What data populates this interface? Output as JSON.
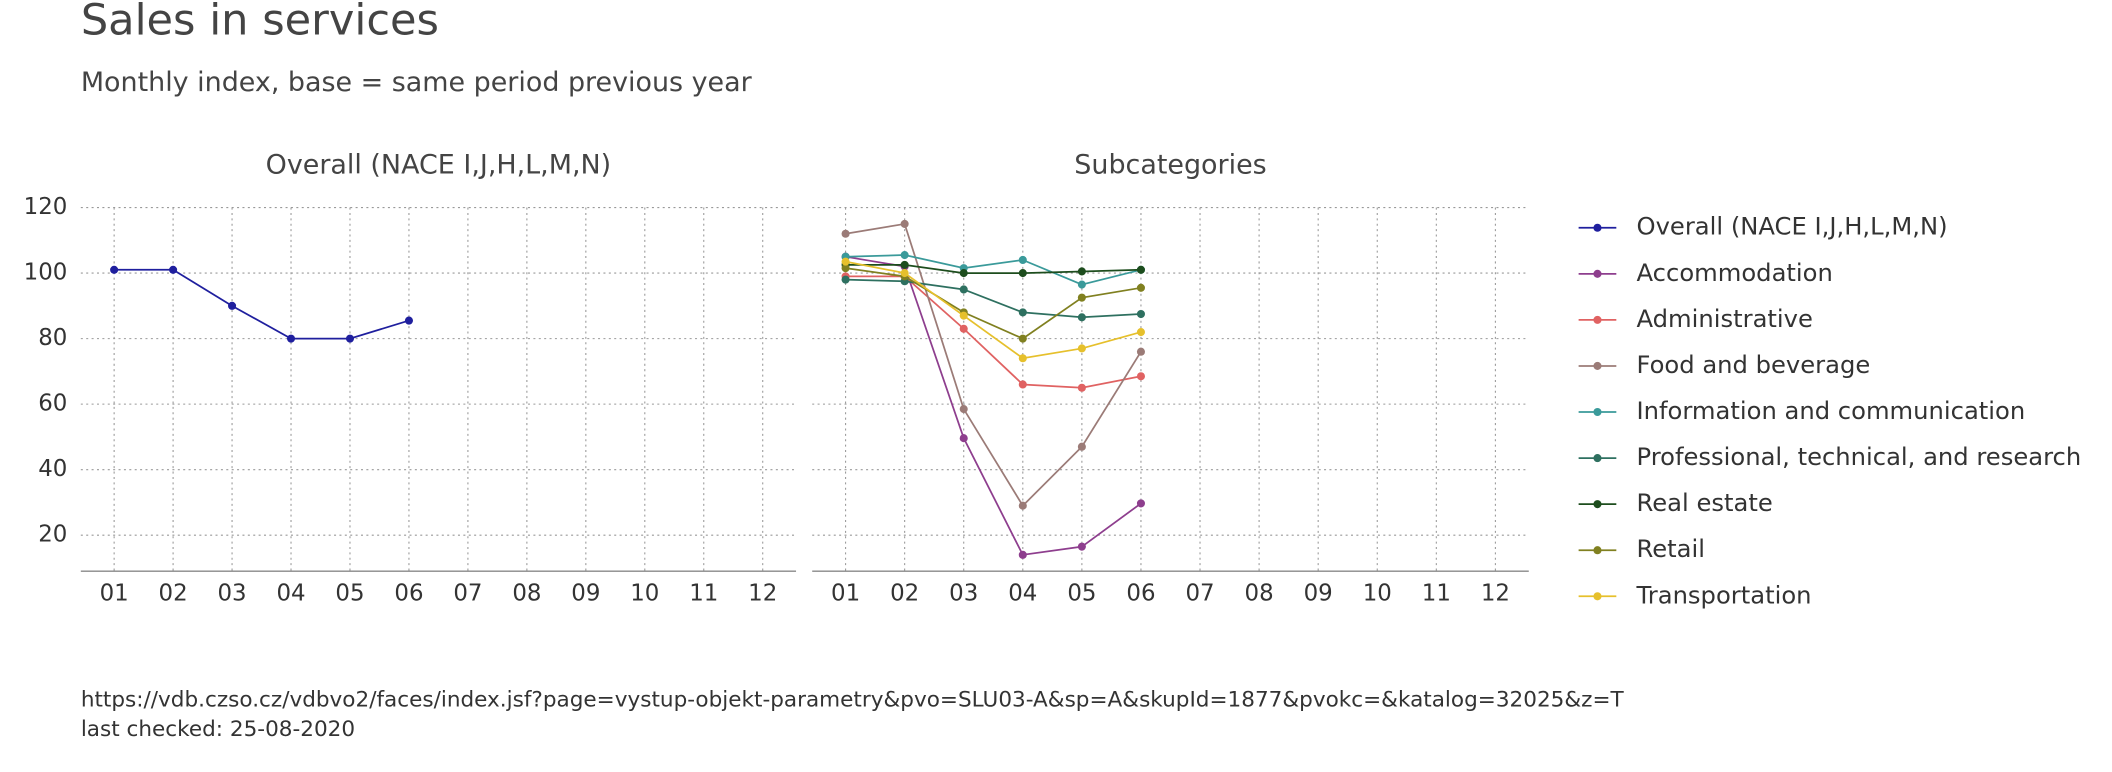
{
  "title": "Sales in services",
  "subtitle": "Monthly index, base = same period previous year",
  "source": "https://vdb.czso.cz/vdbvo2/faces/index.jsf?page=vystup-objekt-parametry&pvo=SLU03-A&sp=A&skupId=1877&pvokc=&katalog=32025&z=T",
  "note": "last checked: 25-08-2020",
  "chart_data": [
    {
      "type": "line",
      "title": "Overall (NACE I,J,H,L,M,N)",
      "categories": [
        "01",
        "02",
        "03",
        "04",
        "05",
        "06",
        "07",
        "08",
        "09",
        "10",
        "11",
        "12"
      ],
      "ylim": [
        9,
        120
      ],
      "yticks": [
        20,
        40,
        60,
        80,
        100,
        120
      ],
      "grid": true,
      "series": [
        {
          "name": "Overall (NACE I,J,H,L,M,N)",
          "color": "#1f1f9e",
          "values": [
            101,
            101,
            90,
            80,
            80,
            85.5,
            null,
            null,
            null,
            null,
            null,
            null
          ]
        }
      ]
    },
    {
      "type": "line",
      "title": "Subcategories",
      "categories": [
        "01",
        "02",
        "03",
        "04",
        "05",
        "06",
        "07",
        "08",
        "09",
        "10",
        "11",
        "12"
      ],
      "ylim": [
        9,
        120
      ],
      "yticks": [
        20,
        40,
        60,
        80,
        100,
        120
      ],
      "grid": true,
      "series": [
        {
          "name": "Accommodation",
          "color": "#8e3e8e",
          "values": [
            105,
            102,
            49.6,
            14,
            16.5,
            29.7,
            null,
            null,
            null,
            null,
            null,
            null
          ]
        },
        {
          "name": "Administrative",
          "color": "#e06262",
          "values": [
            99,
            99,
            83,
            66,
            65,
            68.5,
            null,
            null,
            null,
            null,
            null,
            null
          ]
        },
        {
          "name": "Food and beverage",
          "color": "#9b7b77",
          "values": [
            112,
            115,
            58.5,
            29,
            47,
            76,
            null,
            null,
            null,
            null,
            null,
            null
          ]
        },
        {
          "name": "Information and communication",
          "color": "#3a9a9a",
          "values": [
            105,
            105.5,
            101.5,
            104,
            96.5,
            101,
            null,
            null,
            null,
            null,
            null,
            null
          ]
        },
        {
          "name": "Professional, technical, and research",
          "color": "#2e7060",
          "values": [
            98,
            97.5,
            95,
            88,
            86.5,
            87.5,
            null,
            null,
            null,
            null,
            null,
            null
          ]
        },
        {
          "name": "Real estate",
          "color": "#1d4d1d",
          "values": [
            102.5,
            102.5,
            100,
            100,
            100.5,
            101,
            null,
            null,
            null,
            null,
            null,
            null
          ]
        },
        {
          "name": "Retail",
          "color": "#808020",
          "values": [
            101.5,
            99,
            88,
            80,
            92.5,
            95.5,
            null,
            null,
            null,
            null,
            null,
            null
          ]
        },
        {
          "name": "Transportation",
          "color": "#e6c02c",
          "values": [
            103.5,
            100,
            87,
            74,
            77,
            82,
            null,
            null,
            null,
            null,
            null,
            null
          ]
        }
      ]
    }
  ]
}
